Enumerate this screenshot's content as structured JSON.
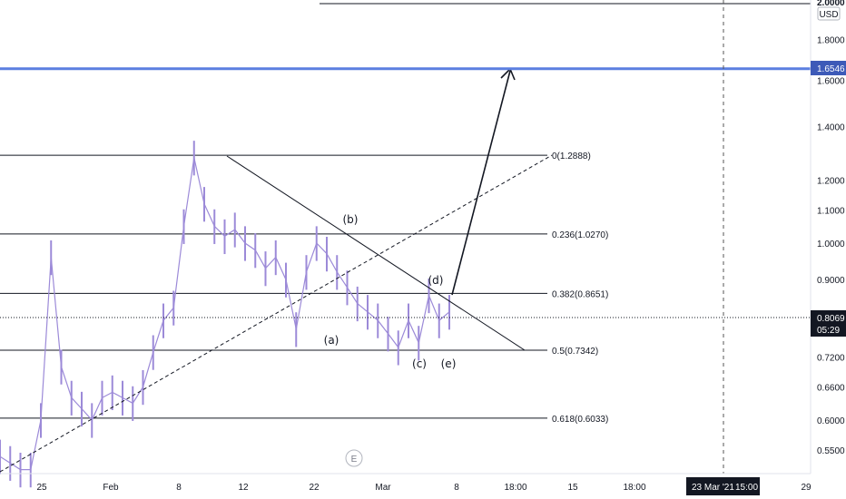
{
  "chart_data": {
    "type": "line",
    "currency": "USD",
    "y_axis": {
      "scale": "log",
      "ylim": [
        0.52,
        2.0
      ],
      "ticks": [
        "1.8000",
        "1.6000",
        "1.4000",
        "1.2000",
        "1.1000",
        "1.0000",
        "0.9000",
        "0.7200",
        "0.6600",
        "0.6000",
        "0.5500"
      ]
    },
    "x_axis": {
      "ticks": [
        "25",
        "Feb",
        "8",
        "12",
        "22",
        "Mar",
        "8",
        "18:00",
        "15",
        "18:00",
        "29"
      ]
    },
    "current_price": "0.8069",
    "countdown": "05:29",
    "top_cut_price": "2.0000",
    "target_level": {
      "value": 1.6546,
      "label": "1.6546",
      "color": "#5b7fe0"
    },
    "crosshair_label": "23 Mar '21",
    "crosshair_time": "15:00",
    "watermark": "E",
    "fib_levels": [
      {
        "ratio": "0",
        "value": 1.2888,
        "label": "0(1.2888)"
      },
      {
        "ratio": "0.236",
        "value": 1.027,
        "label": "0.236(1.0270)"
      },
      {
        "ratio": "0.382",
        "value": 0.8651,
        "label": "0.382(0.8651)"
      },
      {
        "ratio": "0.5",
        "value": 0.7342,
        "label": "0.5(0.7342)"
      },
      {
        "ratio": "0.618",
        "value": 0.6033,
        "label": "0.618(0.6033)"
      }
    ],
    "wave_labels": [
      "(a)",
      "(b)",
      "(c)",
      "(d)",
      "(e)"
    ],
    "price_series": {
      "color": "#9c8ad8",
      "points": [
        [
          "Jan 20",
          0.54
        ],
        [
          "Jan 22",
          0.53
        ],
        [
          "Jan 25",
          0.52
        ],
        [
          "Jan 27",
          0.52
        ],
        [
          "Jan 28",
          0.6
        ],
        [
          "Jan 29",
          0.96
        ],
        [
          "Jan 30",
          0.7
        ],
        [
          "Jan 31",
          0.64
        ],
        [
          "Feb 1",
          0.62
        ],
        [
          "Feb 2",
          0.6
        ],
        [
          "Feb 3",
          0.64
        ],
        [
          "Feb 4",
          0.65
        ],
        [
          "Feb 5",
          0.64
        ],
        [
          "Feb 6",
          0.63
        ],
        [
          "Feb 7",
          0.66
        ],
        [
          "Feb 8",
          0.73
        ],
        [
          "Feb 9",
          0.8
        ],
        [
          "Feb 10",
          0.83
        ],
        [
          "Feb 11",
          1.05
        ],
        [
          "Feb 12",
          1.28
        ],
        [
          "Feb 13",
          1.12
        ],
        [
          "Feb 14",
          1.05
        ],
        [
          "Feb 15",
          1.02
        ],
        [
          "Feb 16",
          1.04
        ],
        [
          "Feb 17",
          1.0
        ],
        [
          "Feb 18",
          0.98
        ],
        [
          "Feb 19",
          0.93
        ],
        [
          "Feb 20",
          0.96
        ],
        [
          "Feb 21",
          0.9
        ],
        [
          "Feb 22",
          0.78
        ],
        [
          "Feb 23",
          0.92
        ],
        [
          "Feb 24",
          1.0
        ],
        [
          "Feb 25",
          0.97
        ],
        [
          "Feb 26",
          0.92
        ],
        [
          "Feb 27",
          0.88
        ],
        [
          "Feb 28",
          0.84
        ],
        [
          "Mar 1",
          0.82
        ],
        [
          "Mar 2",
          0.8
        ],
        [
          "Mar 3",
          0.77
        ],
        [
          "Mar 4",
          0.74
        ],
        [
          "Mar 5",
          0.8
        ],
        [
          "Mar 6",
          0.75
        ],
        [
          "Mar 7",
          0.86
        ],
        [
          "Mar 8",
          0.8
        ],
        [
          "Mar 9",
          0.82
        ]
      ]
    }
  }
}
